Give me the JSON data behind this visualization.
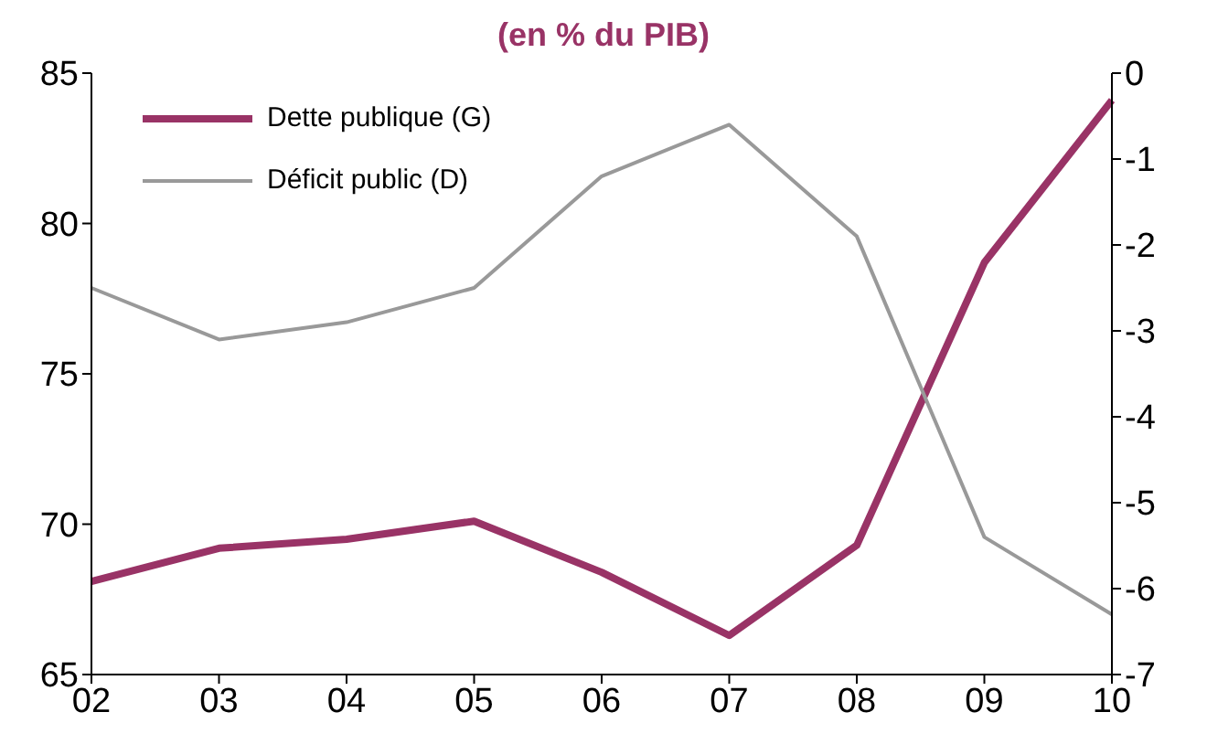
{
  "chart_data": {
    "type": "line",
    "title": "(en % du PIB)",
    "categories": [
      "02",
      "03",
      "04",
      "05",
      "06",
      "07",
      "08",
      "09",
      "10"
    ],
    "series": [
      {
        "name": "Dette publique (G)",
        "color": "#993366",
        "values": [
          68.1,
          69.2,
          69.5,
          70.1,
          68.4,
          66.3,
          69.3,
          78.7,
          84.1
        ]
      },
      {
        "name": "Déficit public (D)",
        "color": "#999999",
        "axis": "y2",
        "values": [
          -2.5,
          -3.1,
          -2.9,
          -2.5,
          -1.2,
          -0.6,
          -1.9,
          -5.4,
          -6.3
        ]
      }
    ],
    "ylim": [
      65,
      85
    ],
    "yticks": [
      65,
      70,
      75,
      80,
      85
    ],
    "y2lim": [
      -7,
      0
    ],
    "y2ticks": [
      -7,
      -6,
      -5,
      -4,
      -3,
      -2,
      -1,
      0
    ],
    "grid": false,
    "legend": "top left",
    "marker": "none",
    "line_style": "solid"
  }
}
